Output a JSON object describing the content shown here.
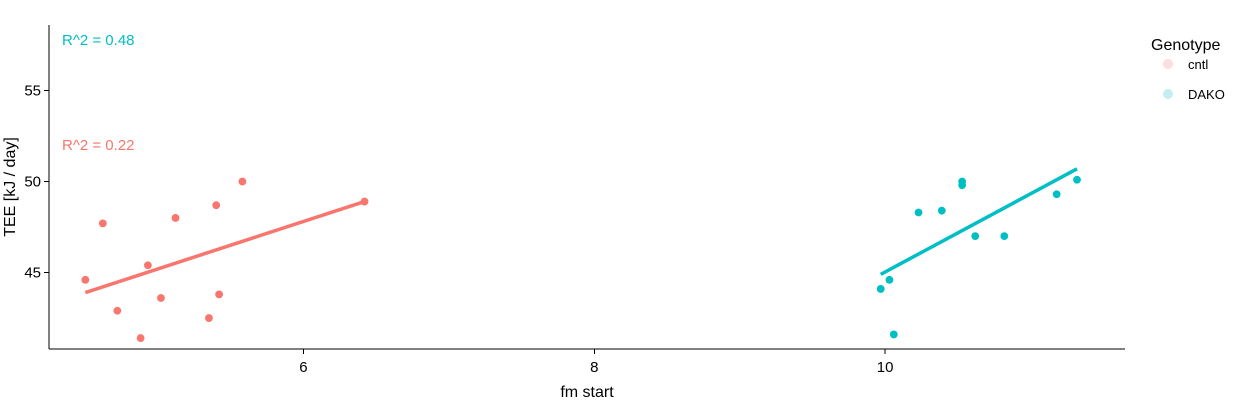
{
  "chart_data": {
    "type": "scatter",
    "xlabel": "fm start",
    "ylabel": "TEE [kJ / day]",
    "xlim": [
      4.25,
      11.65
    ],
    "ylim": [
      40.8,
      58.6
    ],
    "x_ticks": [
      6,
      8,
      10
    ],
    "y_ticks": [
      45,
      50,
      55
    ],
    "grid": false,
    "legend": {
      "title": "Genotype",
      "placement": "right"
    },
    "series": [
      {
        "name": "cntl",
        "color": "#F8766D",
        "legend_color": "#FCDDE1",
        "annotation": "R^2 = 0.22",
        "points": [
          [
            4.5,
            44.6
          ],
          [
            4.62,
            47.7
          ],
          [
            4.72,
            42.9
          ],
          [
            4.88,
            41.4
          ],
          [
            4.93,
            45.4
          ],
          [
            5.02,
            43.6
          ],
          [
            5.12,
            48.0
          ],
          [
            5.35,
            42.5
          ],
          [
            5.4,
            48.7
          ],
          [
            5.42,
            43.8
          ],
          [
            5.58,
            50.0
          ],
          [
            6.42,
            48.9
          ]
        ],
        "trend": [
          [
            4.5,
            43.9
          ],
          [
            6.42,
            48.9
          ]
        ]
      },
      {
        "name": "DAKO",
        "color": "#00BFC4",
        "legend_color": "#C6EEF0",
        "annotation": "R^2 = 0.48",
        "points": [
          [
            9.97,
            44.1
          ],
          [
            10.03,
            44.6
          ],
          [
            10.06,
            41.6
          ],
          [
            10.23,
            48.3
          ],
          [
            10.39,
            48.4
          ],
          [
            10.53,
            49.8
          ],
          [
            10.53,
            50.0
          ],
          [
            10.62,
            47.0
          ],
          [
            10.82,
            47.0
          ],
          [
            11.18,
            49.3
          ],
          [
            11.32,
            50.1
          ]
        ],
        "trend": [
          [
            9.97,
            44.9
          ],
          [
            11.32,
            50.7
          ]
        ]
      }
    ]
  }
}
